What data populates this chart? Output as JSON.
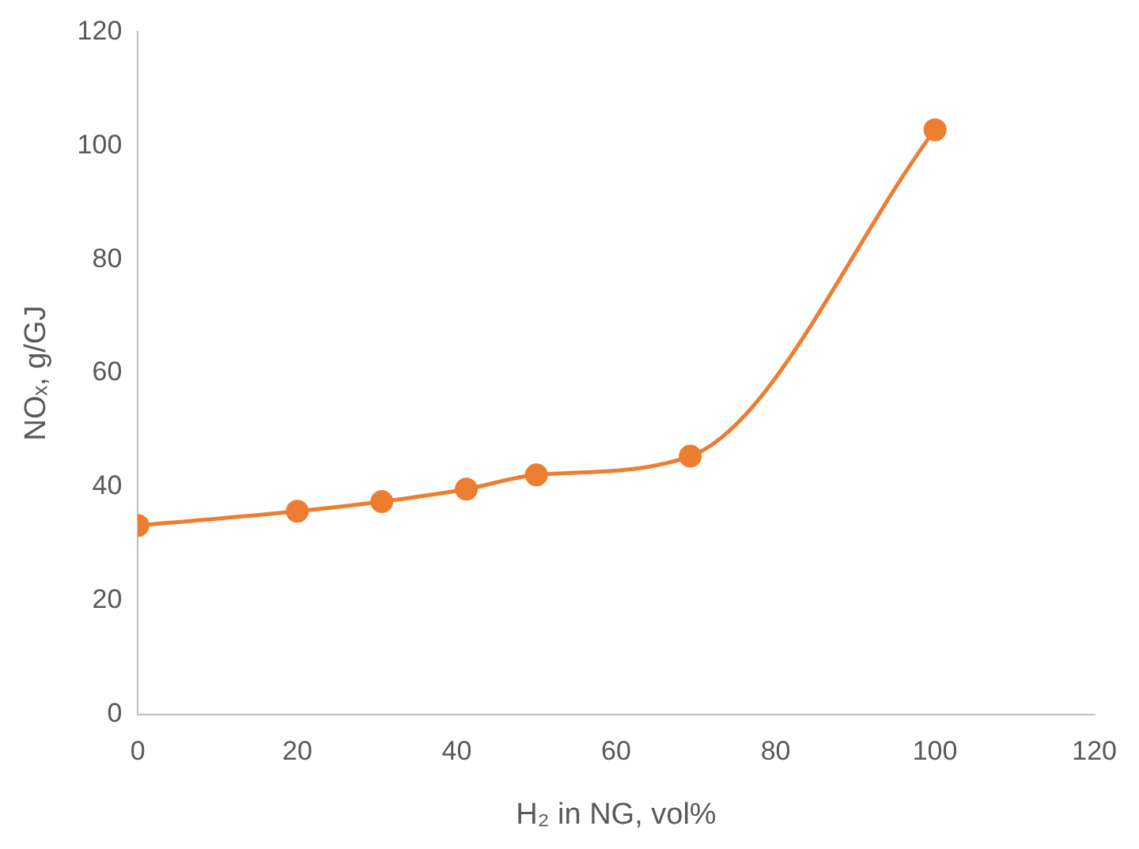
{
  "chart_data": {
    "type": "line",
    "xlabel": "H₂ in NG, vol%",
    "ylabel": "NOₓ, g/GJ",
    "x": [
      0,
      20,
      30.6,
      41.2,
      50,
      69.3,
      100
    ],
    "series": [
      {
        "color": "#ed7d31",
        "values": [
          33.2,
          35.7,
          37.4,
          39.6,
          42.1,
          45.4,
          102.8
        ]
      }
    ],
    "xlim": [
      0,
      120
    ],
    "xticks": [
      0,
      20,
      40,
      60,
      80,
      100,
      120
    ],
    "ylim": [
      0,
      120
    ],
    "yticks": [
      0,
      20,
      40,
      60,
      80,
      100,
      120
    ],
    "grid": false,
    "legend": false,
    "marker": "circle",
    "line_style": "solid"
  }
}
